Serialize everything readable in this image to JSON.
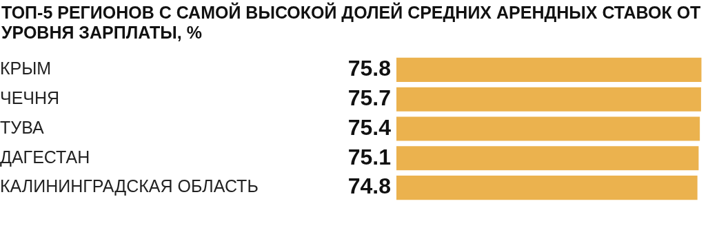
{
  "chart_data": {
    "type": "bar",
    "orientation": "horizontal",
    "title": "ТОП-5 РЕГИОНОВ С САМОЙ ВЫСОКОЙ ДОЛЕЙ СРЕДНИХ АРЕНДНЫХ СТАВОК ОТ УРОВНЯ ЗАРПЛАТЫ, %",
    "categories": [
      "КРЫМ",
      "ЧЕЧНЯ",
      "ТУВА",
      "ДАГЕСТАН",
      "КАЛИНИНГРАДСКАЯ ОБЛАСТЬ"
    ],
    "values": [
      75.8,
      75.7,
      75.4,
      75.1,
      74.8
    ],
    "color": "#ebb24e",
    "data_labels": true,
    "legend": false,
    "tick_labels": "y"
  }
}
